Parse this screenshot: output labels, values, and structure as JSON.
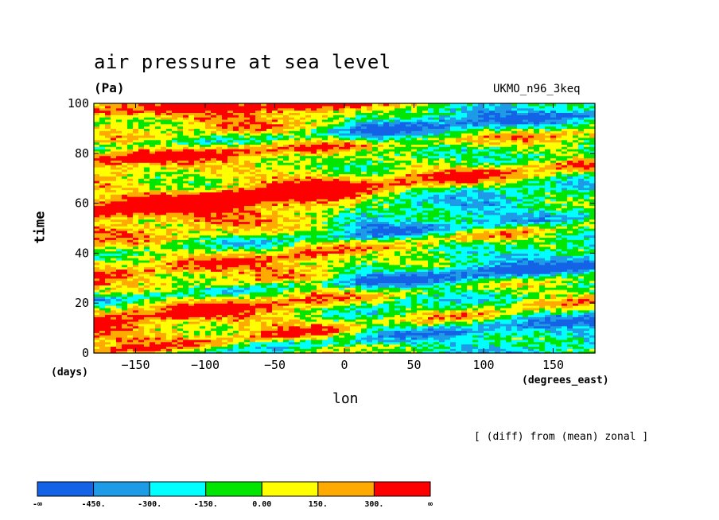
{
  "title": "air pressure at sea level",
  "units": "(Pa)",
  "model": "UKMO_n96_3keq",
  "note": "[ (diff) from (mean) zonal ]",
  "chart_data": {
    "type": "heatmap",
    "title": "air pressure at sea level",
    "xlabel": "lon",
    "ylabel": "time",
    "x_units": "(degrees_east)",
    "y_units": "(days)",
    "xlim": [
      -180,
      180
    ],
    "ylim": [
      0,
      100
    ],
    "x_ticks": [
      -150,
      -100,
      -50,
      0,
      50,
      100,
      150
    ],
    "y_ticks": [
      0,
      20,
      40,
      60,
      80,
      100
    ],
    "colorbar": {
      "labels": [
        "-∞",
        "-450.",
        "-300.",
        "-150.",
        "0.00",
        "150.",
        "300.",
        "∞"
      ],
      "colors": [
        "#1463e6",
        "#1e9be6",
        "#00ffff",
        "#00e600",
        "#ffff00",
        "#ffaa00",
        "#ff0000"
      ]
    },
    "bands": [
      {
        "t0": 2,
        "lon": -140,
        "slope": 0.06,
        "amp": 280
      },
      {
        "t0": 8,
        "lon": 60,
        "slope": 0.05,
        "amp": -330
      },
      {
        "t0": 19,
        "lon": -60,
        "slope": 0.05,
        "amp": 260
      },
      {
        "t0": 29,
        "lon": 20,
        "slope": 0.04,
        "amp": -380
      },
      {
        "t0": 35,
        "lon": -110,
        "slope": 0.06,
        "amp": 290
      },
      {
        "t0": 49,
        "lon": 40,
        "slope": 0.04,
        "amp": -260
      },
      {
        "t0": 64,
        "lon": -70,
        "slope": 0.05,
        "amp": 380
      },
      {
        "t0": 70,
        "lon": 110,
        "slope": 0.05,
        "amp": 300
      },
      {
        "t0": 79,
        "lon": -130,
        "slope": 0.03,
        "amp": 300
      },
      {
        "t0": 90,
        "lon": 30,
        "slope": 0.04,
        "amp": -300
      },
      {
        "t0": 99,
        "lon": -80,
        "slope": 0.02,
        "amp": 330
      }
    ],
    "zonal_structure": {
      "west_lon_range": [
        -180,
        0
      ],
      "west_offset": 120,
      "east_lon_range": [
        0,
        180
      ],
      "east_offset": -160
    }
  }
}
